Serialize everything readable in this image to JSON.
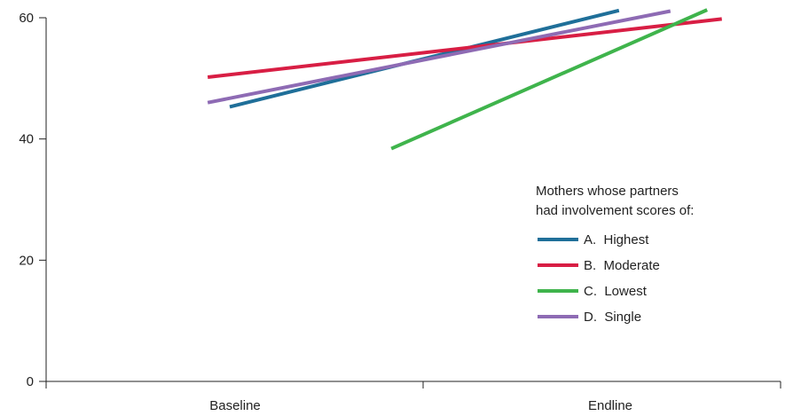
{
  "chart_data": {
    "type": "line",
    "categories": [
      "Baseline",
      "Endline"
    ],
    "y_ticks": [
      0,
      20,
      40,
      60
    ],
    "ylim": [
      0,
      60
    ],
    "grid": false,
    "legend_title": [
      "Mothers whose partners",
      "had involvement scores of:"
    ],
    "legend_position": "right",
    "series": [
      {
        "name": "A.  Highest",
        "color": "#1f6f99",
        "points": [
          {
            "x": 0.25,
            "y": 45.3
          },
          {
            "x": 0.78,
            "y": 61.2
          }
        ]
      },
      {
        "name": "B.  Moderate",
        "color": "#d81e44",
        "points": [
          {
            "x": 0.22,
            "y": 50.2
          },
          {
            "x": 0.92,
            "y": 59.8
          }
        ]
      },
      {
        "name": "C.  Lowest",
        "color": "#3fb44c",
        "points": [
          {
            "x": 0.47,
            "y": 38.4
          },
          {
            "x": 0.9,
            "y": 61.3
          }
        ]
      },
      {
        "name": "D.  Single",
        "color": "#8e6bb4",
        "points": [
          {
            "x": 0.22,
            "y": 46.0
          },
          {
            "x": 0.85,
            "y": 61.1
          }
        ]
      }
    ]
  }
}
